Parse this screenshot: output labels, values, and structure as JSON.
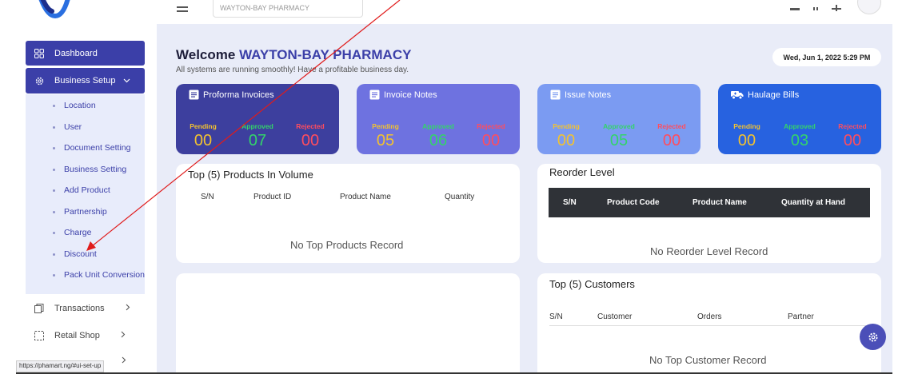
{
  "topbar": {
    "search_text": "WAYTON-BAY PHARMACY"
  },
  "sidebar": {
    "items": [
      {
        "label": "Dashboard"
      },
      {
        "label": "Business Setup"
      },
      {
        "label": "Transactions"
      },
      {
        "label": "Retail Shop"
      }
    ],
    "business_setup_sub": [
      {
        "label": "Location"
      },
      {
        "label": "User"
      },
      {
        "label": "Document Setting"
      },
      {
        "label": "Business Setting"
      },
      {
        "label": "Add Product"
      },
      {
        "label": "Partnership"
      },
      {
        "label": "Charge"
      },
      {
        "label": "Discount"
      },
      {
        "label": "Pack Unit Conversion"
      }
    ]
  },
  "status_url": "https://phamart.ng/#ui-set-up",
  "welcome": {
    "prefix": "Welcome",
    "company": "WAYTON-BAY PHARMACY",
    "subtitle": "All systems are running smoothly! Have a profitable business day."
  },
  "date": "Wed, Jun 1, 2022 5:29 PM",
  "stat_labels": {
    "pending": "Pending",
    "approved": "Approved",
    "rejected": "Rejected"
  },
  "stat_cards": [
    {
      "title": "Proforma Invoices",
      "pending": "00",
      "approved": "07",
      "rejected": "00",
      "color": "#3d3f9e"
    },
    {
      "title": "Invoice Notes",
      "pending": "05",
      "approved": "06",
      "rejected": "00",
      "color": "#6e72e0"
    },
    {
      "title": "Issue Notes",
      "pending": "00",
      "approved": "05",
      "rejected": "00",
      "color": "#7b9bf2"
    },
    {
      "title": "Haulage Bills",
      "pending": "00",
      "approved": "03",
      "rejected": "00",
      "color": "#2762e0"
    }
  ],
  "colors": {
    "pending": "#f2c230",
    "approved": "#33d46a",
    "rejected": "#ff4d5e",
    "accent": "#3b3fa8"
  },
  "top_products": {
    "title": "Top (5) Products In Volume",
    "columns": [
      "S/N",
      "Product ID",
      "Product Name",
      "Quantity"
    ],
    "empty": "No Top Products Record"
  },
  "reorder": {
    "title": "Reorder Level",
    "columns": [
      "S/N",
      "Product Code",
      "Product Name",
      "Quantity at Hand"
    ],
    "empty": "No Reorder Level Record"
  },
  "customers": {
    "title": "Top (5) Customers",
    "columns": [
      "S/N",
      "Customer",
      "Orders",
      "Partner"
    ],
    "empty": "No Top Customer Record"
  }
}
